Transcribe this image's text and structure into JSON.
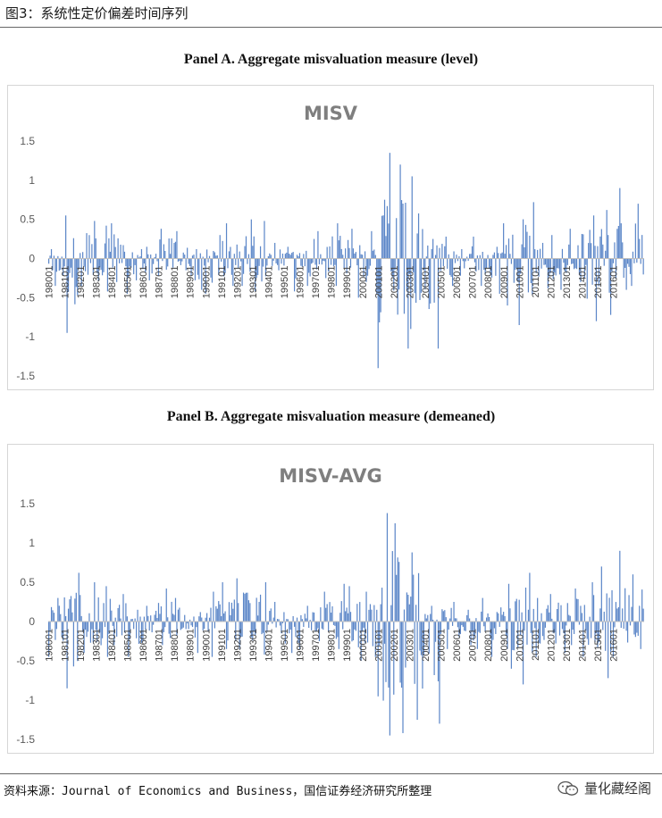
{
  "figure_title": "图3：系统性定价偏差时间序列",
  "source_label": "资料来源：",
  "source_text": "Journal of Economics and Business，国信证券经济研究所整理",
  "watermark_text": "量化藏经阁",
  "bar_color": "#5b86c8",
  "chart_data": [
    {
      "type": "bar",
      "caption": "Panel A. Aggregate misvaluation measure (level)",
      "title": "MISV",
      "ylim": [
        -1.5,
        1.5
      ],
      "yticks": [
        1.5,
        1,
        0.5,
        0,
        -0.5,
        -1,
        -1.5
      ],
      "ytick_labels": [
        "1.5",
        "1",
        "0.5",
        "0",
        "-0.5",
        "-1",
        "-1.5"
      ],
      "x_tick_labels": [
        "198001",
        "198101",
        "198201",
        "198301",
        "198401",
        "198501",
        "198601",
        "198701",
        "198801",
        "198901",
        "199001",
        "199101",
        "199201",
        "199301",
        "199401",
        "199501",
        "199601",
        "199701",
        "199801",
        "199901",
        "200001",
        "200101",
        "200201",
        "200301",
        "200401",
        "200501",
        "200601",
        "200701",
        "200801",
        "200901",
        "201001",
        "201101",
        "201201",
        "201301",
        "201401",
        "201501",
        "201601"
      ],
      "months_per_year": 12,
      "annual_profile": [
        [
          0.12,
          -0.35
        ],
        [
          0.55,
          -0.95
        ],
        [
          0.48,
          -0.35
        ],
        [
          0.42,
          -0.42
        ],
        [
          0.45,
          -0.3
        ],
        [
          0.12,
          -0.45
        ],
        [
          0.15,
          -0.28
        ],
        [
          0.38,
          -0.22
        ],
        [
          0.35,
          -0.15
        ],
        [
          0.12,
          -0.4
        ],
        [
          0.3,
          -0.45
        ],
        [
          0.45,
          -0.35
        ],
        [
          0.5,
          -0.35
        ],
        [
          0.48,
          -0.42
        ],
        [
          0.2,
          -0.15
        ],
        [
          0.15,
          -0.42
        ],
        [
          0.25,
          -0.35
        ],
        [
          0.35,
          -0.25
        ],
        [
          0.45,
          -0.35
        ],
        [
          0.38,
          -0.5
        ],
        [
          0.35,
          -0.45
        ],
        [
          1.35,
          -1.4
        ],
        [
          1.2,
          -1.15
        ],
        [
          1.05,
          -0.9
        ],
        [
          0.25,
          -1.15
        ],
        [
          0.28,
          -0.35
        ],
        [
          0.12,
          -0.22
        ],
        [
          0.28,
          -0.35
        ],
        [
          0.15,
          -0.45
        ],
        [
          0.45,
          -0.6
        ],
        [
          0.72,
          -0.85
        ],
        [
          0.2,
          -0.38
        ],
        [
          0.3,
          -0.4
        ],
        [
          0.38,
          -0.3
        ],
        [
          0.55,
          -0.8
        ],
        [
          0.62,
          -0.72
        ],
        [
          0.9,
          -0.4
        ],
        [
          0.7,
          -0.35
        ]
      ]
    },
    {
      "type": "bar",
      "caption": "Panel B. Aggregate misvaluation measure (demeaned)",
      "title": "MISV-AVG",
      "ylim": [
        -1.5,
        1.5
      ],
      "yticks": [
        1.5,
        1,
        0.5,
        0,
        -0.5,
        -1,
        -1.5
      ],
      "ytick_labels": [
        "1.5",
        "1",
        "0.5",
        "0",
        "-0.5",
        "-1",
        "-1.5"
      ],
      "x_tick_labels": [
        "198001",
        "198101",
        "198201",
        "198301",
        "198401",
        "198501",
        "198601",
        "198701",
        "198801",
        "198901",
        "199001",
        "199101",
        "199201",
        "199301",
        "199401",
        "199501",
        "199601",
        "199701",
        "199801",
        "199901",
        "200001",
        "200101",
        "200201",
        "200301",
        "200401",
        "200501",
        "200601",
        "200701",
        "200801",
        "200901",
        "201001",
        "201101",
        "201201",
        "201301",
        "201401",
        "201501",
        "201601"
      ],
      "months_per_year": 12,
      "annual_profile": [
        [
          0.3,
          -0.45
        ],
        [
          0.62,
          -0.85
        ],
        [
          0.5,
          -0.4
        ],
        [
          0.45,
          -0.45
        ],
        [
          0.35,
          -0.3
        ],
        [
          0.15,
          -0.45
        ],
        [
          0.2,
          -0.25
        ],
        [
          0.42,
          -0.3
        ],
        [
          0.3,
          -0.18
        ],
        [
          0.12,
          -0.4
        ],
        [
          0.38,
          -0.45
        ],
        [
          0.5,
          -0.35
        ],
        [
          0.55,
          -0.35
        ],
        [
          0.5,
          -0.42
        ],
        [
          0.25,
          -0.15
        ],
        [
          0.12,
          -0.4
        ],
        [
          0.2,
          -0.35
        ],
        [
          0.38,
          -0.25
        ],
        [
          0.48,
          -0.35
        ],
        [
          0.45,
          -0.5
        ],
        [
          0.38,
          -0.45
        ],
        [
          1.38,
          -1.45
        ],
        [
          1.25,
          -1.42
        ],
        [
          0.88,
          -1.25
        ],
        [
          0.2,
          -1.3
        ],
        [
          0.25,
          -0.35
        ],
        [
          0.15,
          -0.3
        ],
        [
          0.3,
          -0.35
        ],
        [
          0.18,
          -0.45
        ],
        [
          0.48,
          -0.6
        ],
        [
          0.62,
          -0.8
        ],
        [
          0.3,
          -0.45
        ],
        [
          0.35,
          -0.4
        ],
        [
          0.42,
          -0.3
        ],
        [
          0.5,
          -0.45
        ],
        [
          0.7,
          -0.72
        ],
        [
          0.9,
          -0.45
        ],
        [
          0.6,
          -0.35
        ]
      ]
    }
  ]
}
